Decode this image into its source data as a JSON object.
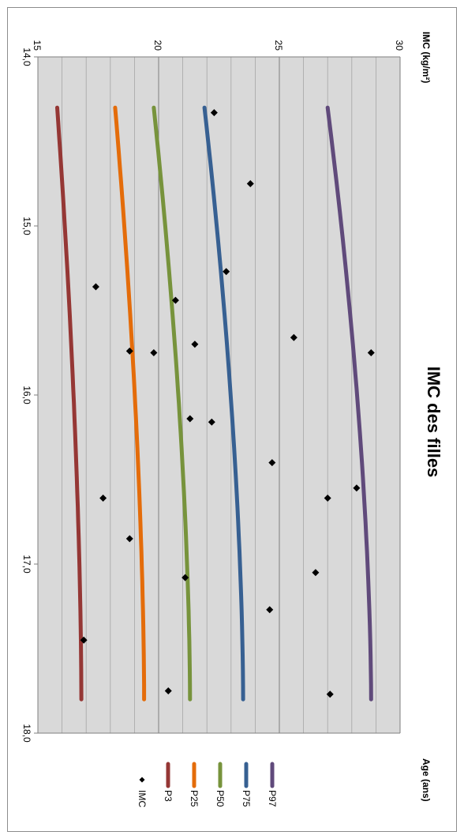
{
  "chart_data": {
    "type": "line",
    "title": "IMC des filles",
    "xlabel": "Age (ans)",
    "ylabel": "IMC (kg/m²)",
    "xlim": [
      14,
      18
    ],
    "ylim": [
      15,
      30
    ],
    "xticks": [
      "14,0",
      "15,0",
      "16,0",
      "17,0",
      "18,0"
    ],
    "yticks": [
      "15",
      "20",
      "25",
      "30"
    ],
    "grid": true,
    "legend_position": "bottom",
    "series": [
      {
        "name": "P97",
        "color": "#604a7b",
        "x": [
          14.3,
          17.8
        ],
        "y": [
          27.0,
          28.8
        ]
      },
      {
        "name": "P75",
        "color": "#376092",
        "x": [
          14.3,
          17.8
        ],
        "y": [
          21.9,
          23.5
        ]
      },
      {
        "name": "P50",
        "color": "#77933c",
        "x": [
          14.3,
          17.8
        ],
        "y": [
          19.8,
          21.3
        ]
      },
      {
        "name": "P25",
        "color": "#e46c0a",
        "x": [
          14.3,
          17.8
        ],
        "y": [
          18.2,
          19.4
        ]
      },
      {
        "name": "P3",
        "color": "#953735",
        "x": [
          14.3,
          17.8
        ],
        "y": [
          15.8,
          16.8
        ]
      }
    ],
    "scatter": {
      "name": "IMC",
      "color": "#000000",
      "points": [
        [
          14.33,
          22.3
        ],
        [
          14.75,
          23.8
        ],
        [
          15.27,
          22.8
        ],
        [
          15.36,
          17.4
        ],
        [
          15.44,
          20.7
        ],
        [
          15.66,
          25.6
        ],
        [
          15.7,
          21.5
        ],
        [
          15.74,
          18.8
        ],
        [
          15.75,
          19.8
        ],
        [
          15.75,
          28.8
        ],
        [
          16.14,
          21.3
        ],
        [
          16.16,
          22.2
        ],
        [
          16.4,
          24.7
        ],
        [
          16.55,
          28.2
        ],
        [
          16.61,
          27.0
        ],
        [
          16.61,
          17.7
        ],
        [
          16.85,
          18.8
        ],
        [
          17.05,
          26.5
        ],
        [
          17.08,
          21.1
        ],
        [
          17.27,
          24.6
        ],
        [
          17.45,
          16.9
        ],
        [
          17.75,
          20.4
        ],
        [
          17.77,
          27.1
        ]
      ]
    }
  }
}
